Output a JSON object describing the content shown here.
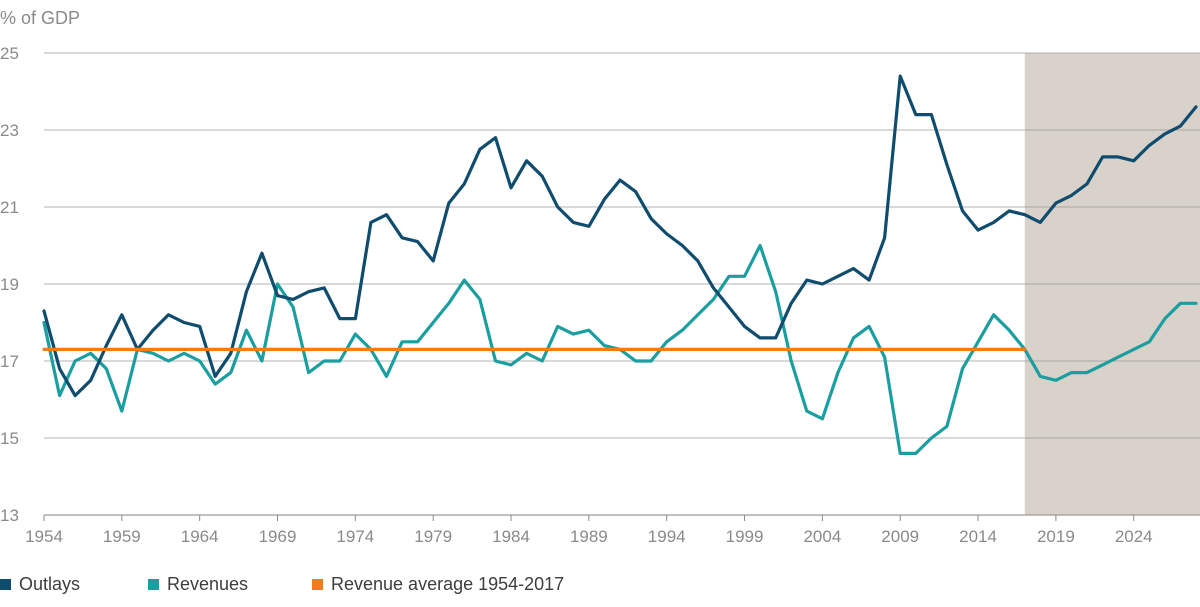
{
  "chart_data": {
    "type": "line",
    "ylabel": "% of GDP",
    "xlim": [
      1954,
      2028
    ],
    "ylim": [
      13,
      25
    ],
    "y_ticks": [
      13,
      15,
      17,
      19,
      21,
      23,
      25
    ],
    "x_ticks": [
      1954,
      1959,
      1964,
      1969,
      1974,
      1979,
      1984,
      1989,
      1994,
      1999,
      2004,
      2009,
      2014,
      2019,
      2024
    ],
    "grid": "horizontal",
    "projection_start": 2017,
    "legend_placement": "bottom",
    "series": [
      {
        "name": "Outlays",
        "color": "#0f4c6e",
        "x": [
          1954,
          1955,
          1956,
          1957,
          1958,
          1959,
          1960,
          1961,
          1962,
          1963,
          1964,
          1965,
          1966,
          1967,
          1968,
          1969,
          1970,
          1971,
          1972,
          1973,
          1974,
          1975,
          1976,
          1977,
          1978,
          1979,
          1980,
          1981,
          1982,
          1983,
          1984,
          1985,
          1986,
          1987,
          1988,
          1989,
          1990,
          1991,
          1992,
          1993,
          1994,
          1995,
          1996,
          1997,
          1998,
          1999,
          2000,
          2001,
          2002,
          2003,
          2004,
          2005,
          2006,
          2007,
          2008,
          2009,
          2010,
          2011,
          2012,
          2013,
          2014,
          2015,
          2016,
          2017,
          2018,
          2019,
          2020,
          2021,
          2022,
          2023,
          2024,
          2025,
          2026,
          2027,
          2028
        ],
        "values": [
          18.3,
          16.8,
          16.1,
          16.5,
          17.4,
          18.2,
          17.3,
          17.8,
          18.2,
          18.0,
          17.9,
          16.6,
          17.2,
          18.8,
          19.8,
          18.7,
          18.6,
          18.8,
          18.9,
          18.1,
          18.1,
          20.6,
          20.8,
          20.2,
          20.1,
          19.6,
          21.1,
          21.6,
          22.5,
          22.8,
          21.5,
          22.2,
          21.8,
          21.0,
          20.6,
          20.5,
          21.2,
          21.7,
          21.4,
          20.7,
          20.3,
          20.0,
          19.6,
          18.9,
          18.4,
          17.9,
          17.6,
          17.6,
          18.5,
          19.1,
          19.0,
          19.2,
          19.4,
          19.1,
          20.2,
          24.4,
          23.4,
          23.4,
          22.1,
          20.9,
          20.4,
          20.6,
          20.9,
          20.8,
          20.6,
          21.1,
          21.3,
          21.6,
          22.3,
          22.3,
          22.2,
          22.6,
          22.9,
          23.1,
          23.6
        ]
      },
      {
        "name": "Revenues",
        "color": "#1a9ea0",
        "x": [
          1954,
          1955,
          1956,
          1957,
          1958,
          1959,
          1960,
          1961,
          1962,
          1963,
          1964,
          1965,
          1966,
          1967,
          1968,
          1969,
          1970,
          1971,
          1972,
          1973,
          1974,
          1975,
          1976,
          1977,
          1978,
          1979,
          1980,
          1981,
          1982,
          1983,
          1984,
          1985,
          1986,
          1987,
          1988,
          1989,
          1990,
          1991,
          1992,
          1993,
          1994,
          1995,
          1996,
          1997,
          1998,
          1999,
          2000,
          2001,
          2002,
          2003,
          2004,
          2005,
          2006,
          2007,
          2008,
          2009,
          2010,
          2011,
          2012,
          2013,
          2014,
          2015,
          2016,
          2017,
          2018,
          2019,
          2020,
          2021,
          2022,
          2023,
          2024,
          2025,
          2026,
          2027,
          2028
        ],
        "values": [
          18.0,
          16.1,
          17.0,
          17.2,
          16.8,
          15.7,
          17.3,
          17.2,
          17.0,
          17.2,
          17.0,
          16.4,
          16.7,
          17.8,
          17.0,
          19.0,
          18.4,
          16.7,
          17.0,
          17.0,
          17.7,
          17.3,
          16.6,
          17.5,
          17.5,
          18.0,
          18.5,
          19.1,
          18.6,
          17.0,
          16.9,
          17.2,
          17.0,
          17.9,
          17.7,
          17.8,
          17.4,
          17.3,
          17.0,
          17.0,
          17.5,
          17.8,
          18.2,
          18.6,
          19.2,
          19.2,
          20.0,
          18.8,
          17.0,
          15.7,
          15.5,
          16.7,
          17.6,
          17.9,
          17.1,
          14.6,
          14.6,
          15.0,
          15.3,
          16.8,
          17.5,
          18.2,
          17.8,
          17.3,
          16.6,
          16.5,
          16.7,
          16.7,
          16.9,
          17.1,
          17.3,
          17.5,
          18.1,
          18.5,
          18.5
        ]
      },
      {
        "name": "Revenue average 1954-2017",
        "color": "#f07d1a",
        "x": [
          1954,
          2017
        ],
        "values": [
          17.3,
          17.3
        ]
      }
    ]
  },
  "colors": {
    "projection_shade": "#d8d2cb",
    "grid": "#9a9a9a",
    "axis": "#8a8a8a",
    "tick_text": "#8a8a8a"
  }
}
